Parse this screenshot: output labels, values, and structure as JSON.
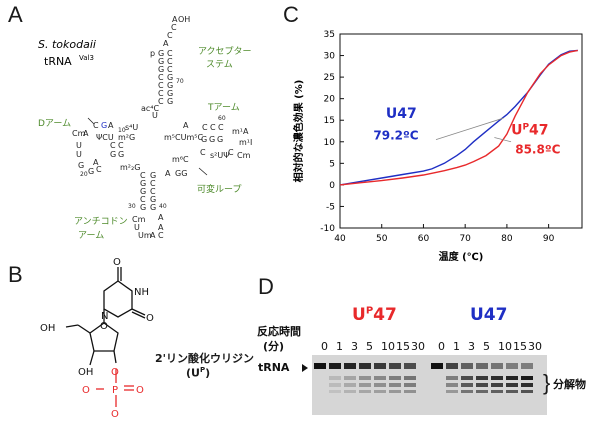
{
  "panels": {
    "a": {
      "letter": "A",
      "organism": "S. tokodaii",
      "trna_label": "tRNA",
      "trna_sup": "Val3",
      "labels": {
        "acceptor": [
          "アクセプター",
          "ステム"
        ],
        "d_arm": "Dアーム",
        "t_arm": "Tアーム",
        "anticodon": [
          "アンチコドン",
          "アーム"
        ],
        "variable_loop": "可変ループ",
        "pos15": "15",
        "pos47": "47",
        "u47": "U",
        "u47_sup": "P"
      }
    },
    "b": {
      "letter": "B",
      "name": "2'リン酸化ウリジン",
      "abbr": "(U",
      "abbr_sup": "P",
      "abbr_end": ")",
      "atoms": {
        "o": "O",
        "oh": "OH",
        "n": "N",
        "nh": "NH",
        "p": "P"
      }
    },
    "c": {
      "letter": "C",
      "chart_data": {
        "type": "line",
        "xlabel": "温度 (℃)",
        "ylabel": "相対的な濃色効果 (%)",
        "xlim": [
          40,
          98
        ],
        "ylim": [
          -10,
          35
        ],
        "xticks": [
          40,
          50,
          60,
          70,
          80,
          90
        ],
        "yticks": [
          -10,
          -5,
          0,
          5,
          10,
          15,
          20,
          25,
          30,
          35
        ],
        "grid": false,
        "series": [
          {
            "name": "U47",
            "color": "#1f2fc4",
            "tm_label": "79.2ºC",
            "x": [
              40,
              45,
              50,
              55,
              60,
              62,
              65,
              68,
              70,
              72,
              75,
              78,
              80,
              82,
              85,
              88,
              90,
              93,
              95,
              97
            ],
            "y": [
              0,
              0.8,
              1.6,
              2.4,
              3.2,
              3.7,
              5,
              6.8,
              8.2,
              10,
              12.4,
              14.8,
              16.3,
              18.2,
              21.5,
              25.5,
              28,
              30.2,
              31,
              31.2
            ]
          },
          {
            "name": "U",
            "name_sup": "P",
            "name_end": "47",
            "color": "#e8292b",
            "tm_label": "85.8ºC",
            "x": [
              40,
              45,
              50,
              55,
              60,
              63,
              65,
              68,
              70,
              72,
              75,
              78,
              80,
              82,
              85,
              88,
              90,
              93,
              95,
              97
            ],
            "y": [
              0,
              0.5,
              1,
              1.6,
              2.3,
              2.9,
              3.3,
              4,
              4.6,
              5.4,
              6.8,
              9,
              11.8,
              16,
              21.5,
              25.8,
              27.8,
              30,
              30.8,
              31.2
            ]
          }
        ]
      }
    },
    "d": {
      "letter": "D",
      "group_up": {
        "prefix": "U",
        "sup": "P",
        "suffix": "47",
        "color": "#e8292b"
      },
      "group_u": {
        "label": "U47",
        "color": "#1f2fc4"
      },
      "time_label_1": "反応時間",
      "time_label_2": "(分)",
      "lanes": [
        "0",
        "1",
        "3",
        "5",
        "10",
        "15",
        "30"
      ],
      "trna_label": "tRNA",
      "products_label": "分解物"
    }
  }
}
